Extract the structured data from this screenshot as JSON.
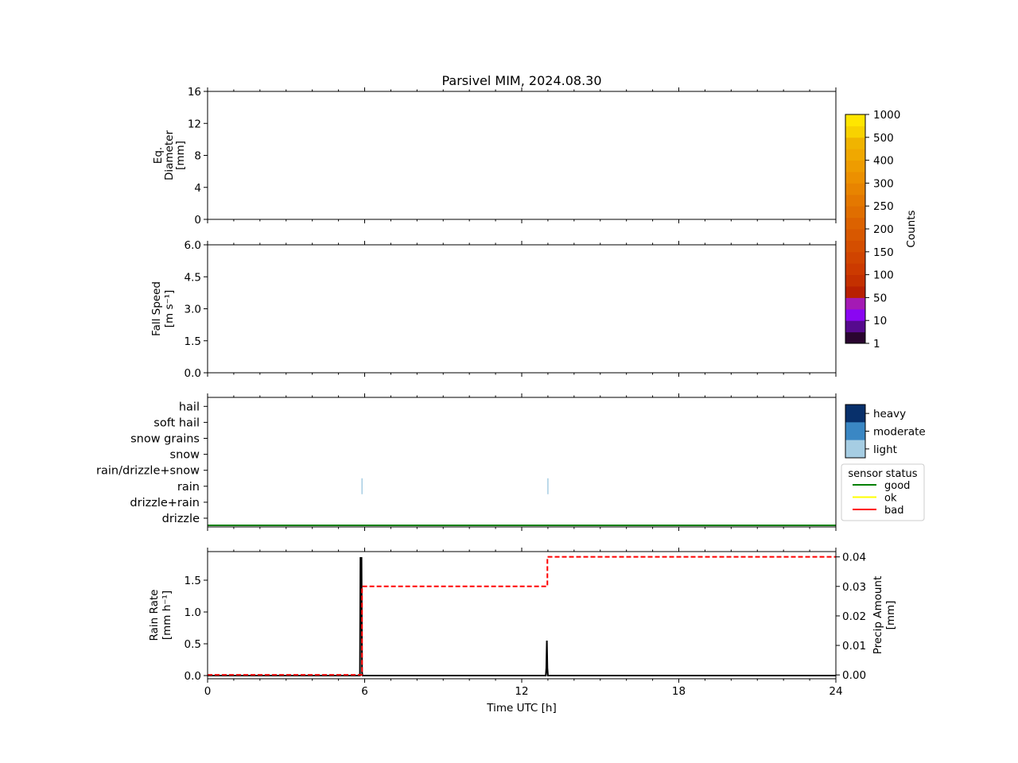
{
  "title": "Parsivel MIM, 2024.08.30",
  "chart_data": [
    {
      "type": "heatmap",
      "panel": "diameter",
      "ylabel_lines": [
        "Eq.",
        "Diameter",
        "[mm]"
      ],
      "x_range": [
        0,
        24
      ],
      "ylim": [
        0,
        16
      ],
      "yticks": [
        0,
        4,
        8,
        12,
        16
      ],
      "ytick_labels": [
        "0",
        "4",
        "8",
        "12",
        "16"
      ],
      "grid": false,
      "values": []
    },
    {
      "type": "heatmap",
      "panel": "fall-speed",
      "ylabel_lines": [
        "Fall Speed",
        "[m s⁻¹]"
      ],
      "x_range": [
        0,
        24
      ],
      "ylim": [
        0,
        6
      ],
      "yticks": [
        0,
        1.5,
        3,
        4.5,
        6
      ],
      "ytick_labels": [
        "0.0",
        "1.5",
        "3.0",
        "4.5",
        "6.0"
      ],
      "grid": false,
      "values": []
    },
    {
      "type": "scatter",
      "panel": "precip-type",
      "categories": [
        "drizzle",
        "drizzle+rain",
        "rain",
        "rain/drizzle+snow",
        "snow",
        "snow grains",
        "soft hail",
        "hail"
      ],
      "events": [
        {
          "x": 5.9,
          "category": "rain",
          "intensity": "light"
        },
        {
          "x": 13.0,
          "category": "rain",
          "intensity": "light"
        }
      ],
      "status_line": {
        "name": "good",
        "color": "#008000"
      },
      "intensity_legend": [
        {
          "name": "heavy",
          "color": "#08306b"
        },
        {
          "name": "moderate",
          "color": "#3a87c4"
        },
        {
          "name": "light",
          "color": "#a6cde3"
        }
      ],
      "status_legend": {
        "title": "sensor status",
        "entries": [
          {
            "name": "good",
            "color": "#008000"
          },
          {
            "name": "ok",
            "color": "#ffff00"
          },
          {
            "name": "bad",
            "color": "#ff0000"
          }
        ]
      }
    },
    {
      "type": "line",
      "panel": "rain",
      "xlabel": "Time UTC [h]",
      "ylabel_lines": [
        "Rain Rate",
        "[mm h⁻¹]"
      ],
      "y2label_lines": [
        "Precip Amount",
        "[mm]"
      ],
      "xlim": [
        0,
        24
      ],
      "xticks": [
        0,
        6,
        12,
        18,
        24
      ],
      "xtick_labels": [
        "0",
        "6",
        "12",
        "18",
        "24"
      ],
      "ylim": [
        -0.05,
        1.95
      ],
      "yticks": [
        0,
        0.5,
        1,
        1.5
      ],
      "ytick_labels": [
        "0.0",
        "0.5",
        "1.0",
        "1.5"
      ],
      "y2lim": [
        -0.0013,
        0.0418
      ],
      "y2ticks": [
        0,
        0.01,
        0.02,
        0.03,
        0.04
      ],
      "y2tick_labels": [
        "0.00",
        "0.01",
        "0.02",
        "0.03",
        "0.04"
      ],
      "series": [
        {
          "axis": "left",
          "color": "#000000",
          "style": "solid",
          "x": [
            0,
            5.82,
            5.84,
            5.86,
            5.88,
            5.9,
            5.92,
            12.92,
            12.94,
            12.96,
            12.98,
            13.0,
            24
          ],
          "y": [
            0,
            0,
            1.85,
            1.85,
            1.85,
            0.05,
            0,
            0,
            0.12,
            0.55,
            0.12,
            0,
            0
          ]
        },
        {
          "axis": "right",
          "color": "#ff0000",
          "style": "dashed",
          "step": true,
          "x": [
            0,
            5.9,
            5.9,
            12.98,
            12.98,
            24
          ],
          "y": [
            0,
            0,
            0.03,
            0.03,
            0.04,
            0.04
          ]
        }
      ]
    }
  ],
  "colorbar": {
    "label": "Counts",
    "tick_labels": [
      "1",
      "10",
      "50",
      "100",
      "150",
      "200",
      "250",
      "300",
      "400",
      "500",
      "1000"
    ],
    "colors": [
      "#2a0530",
      "#560a8e",
      "#8a06f2",
      "#a41ab4",
      "#b82002",
      "#c43000",
      "#cc3a00",
      "#d04400",
      "#d44e00",
      "#d85800",
      "#dc6200",
      "#e06e00",
      "#e47800",
      "#e88400",
      "#ec9000",
      "#ee9c00",
      "#f0a800",
      "#f0b400",
      "#f8d200",
      "#ffe600"
    ]
  }
}
